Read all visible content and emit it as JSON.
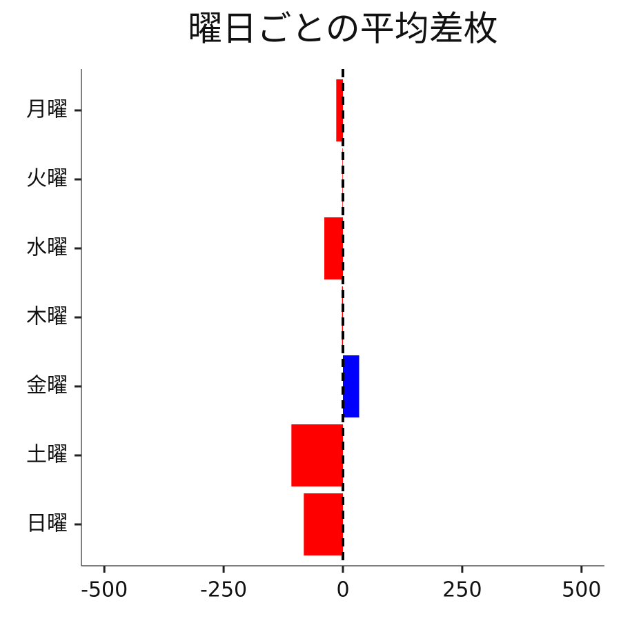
{
  "chart_data": {
    "type": "barh",
    "title": "曜日ごとの平均差枚",
    "categories": [
      "月曜",
      "火曜",
      "水曜",
      "木曜",
      "金曜",
      "土曜",
      "日曜"
    ],
    "values": [
      -14,
      -1,
      -39,
      -2,
      34,
      -108,
      -82
    ],
    "colors": [
      "#ff0000",
      "#ff0000",
      "#ff0000",
      "#ff0000",
      "#0000ff",
      "#ff0000",
      "#ff0000"
    ],
    "xlim": [
      -548,
      548
    ],
    "xticks": [
      -500,
      -250,
      0,
      250,
      500
    ],
    "reference_line": 0,
    "grid": false
  }
}
